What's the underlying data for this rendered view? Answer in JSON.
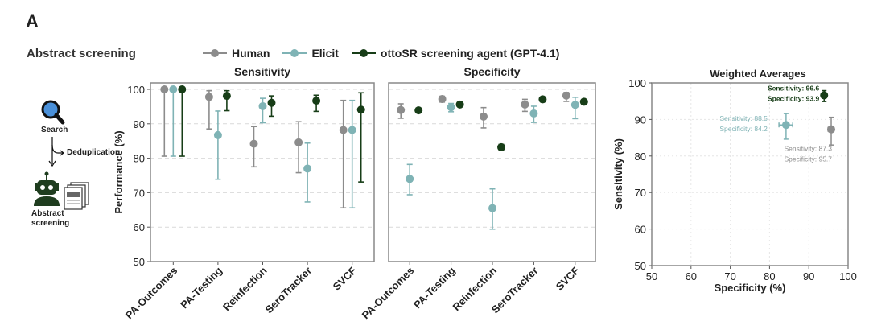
{
  "panel_label": "A",
  "section_title": "Abstract screening",
  "legend": [
    {
      "name": "Human",
      "color": "#8c8c8c"
    },
    {
      "name": "Elicit",
      "color": "#7fb3b5"
    },
    {
      "name": "ottoSR screening agent (GPT-4.1)",
      "color": "#173d17"
    }
  ],
  "workflow": {
    "search_label": "Search",
    "dedup_label": "Deduplication",
    "screening_label_1": "Abstract",
    "screening_label_2": "screening",
    "icons": [
      "magnifier-icon",
      "robot-icon",
      "documents-icon"
    ]
  },
  "chart_data": [
    {
      "type": "scatter",
      "title": "Sensitivity",
      "ylabel": "Performance (%)",
      "ylim": [
        50,
        100
      ],
      "yticks": [
        50,
        60,
        70,
        80,
        90,
        100
      ],
      "categories": [
        "PA-Outcomes",
        "PA-Testing",
        "Reinfection",
        "SeroTracker",
        "SVCF"
      ],
      "grid": "horizontal dashed",
      "series": [
        {
          "name": "Human",
          "values": [
            100,
            97.8,
            84.2,
            84.6,
            88.2
          ],
          "lower": [
            80.6,
            88.5,
            77.5,
            75.8,
            65.6
          ],
          "upper": [
            100,
            99.6,
            89.2,
            90.6,
            96.8
          ]
        },
        {
          "name": "Elicit",
          "values": [
            100,
            86.7,
            95.1,
            77.0,
            88.2
          ],
          "lower": [
            80.6,
            73.9,
            90.3,
            67.3,
            65.6
          ],
          "upper": [
            100,
            93.7,
            97.4,
            84.4,
            96.8
          ]
        },
        {
          "name": "ottoSR screening agent (GPT-4.1)",
          "values": [
            100,
            98.1,
            96.1,
            96.7,
            94.1
          ],
          "lower": [
            80.6,
            93.8,
            92.2,
            93.6,
            73.1
          ],
          "upper": [
            100,
            99.6,
            98.1,
            98.3,
            99.0
          ]
        }
      ]
    },
    {
      "type": "scatter",
      "title": "Specificity",
      "ylim": [
        50,
        100
      ],
      "categories": [
        "PA-Outcomes",
        "PA-Testing",
        "Reinfection",
        "SeroTracker",
        "SVCF"
      ],
      "grid": "horizontal dashed",
      "series": [
        {
          "name": "Human",
          "values": [
            94.0,
            97.2,
            92.1,
            95.6,
            98.2
          ],
          "lower": [
            91.6,
            96.3,
            88.8,
            93.6,
            96.5
          ],
          "upper": [
            95.8,
            98.0,
            94.7,
            97.1,
            99.1
          ]
        },
        {
          "name": "Elicit",
          "values": [
            74.0,
            94.8,
            65.5,
            93.0,
            95.5
          ],
          "lower": [
            69.4,
            93.5,
            59.4,
            90.4,
            91.5
          ],
          "upper": [
            78.2,
            95.9,
            71.1,
            95.1,
            97.7
          ]
        },
        {
          "name": "ottoSR screening agent (GPT-4.1)",
          "values": [
            93.9,
            95.6,
            83.2,
            97.1,
            96.4
          ],
          "lower": [
            93.2,
            95.0,
            82.4,
            96.6,
            95.8
          ],
          "upper": [
            94.5,
            96.1,
            84.0,
            97.5,
            96.9
          ]
        }
      ]
    },
    {
      "type": "scatter",
      "title": "Weighted Averages",
      "xlabel": "Specificity (%)",
      "ylabel": "Sensitivity (%)",
      "xlim": [
        50,
        100
      ],
      "ylim": [
        50,
        100
      ],
      "xticks": [
        50,
        60,
        70,
        80,
        90,
        100
      ],
      "yticks": [
        50,
        60,
        70,
        80,
        90,
        100
      ],
      "grid": "dotted",
      "points": [
        {
          "name": "ottoSR screening agent (GPT-4.1)",
          "x": 93.9,
          "y": 96.6,
          "ylow": 94.9,
          "yhigh": 97.9,
          "xlow": 93.3,
          "xhigh": 94.4,
          "label_1": "Sensitivity: 96.6",
          "label_2": "Specificity: 93.9"
        },
        {
          "name": "Elicit",
          "x": 84.2,
          "y": 88.5,
          "ylow": 84.6,
          "yhigh": 91.6,
          "xlow": 82.4,
          "xhigh": 85.9,
          "label_1": "Sensitivity: 88.5",
          "label_2": "Specificity: 84.2"
        },
        {
          "name": "Human",
          "x": 95.7,
          "y": 87.3,
          "ylow": 83.0,
          "yhigh": 90.6,
          "xlow": 94.9,
          "xhigh": 96.4,
          "label_1": "Sensitivity: 87.3",
          "label_2": "Specificity: 95.7"
        }
      ]
    }
  ]
}
